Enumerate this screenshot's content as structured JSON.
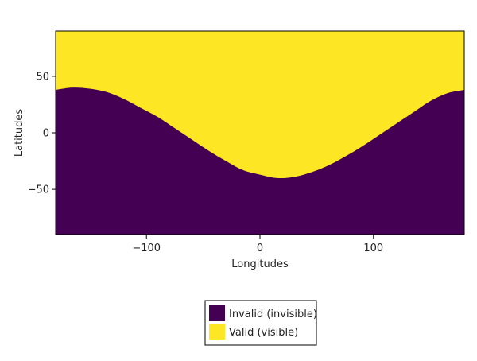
{
  "chart_data": {
    "type": "heatmap",
    "title": "",
    "xlabel": "Longitudes",
    "ylabel": "Latitudes",
    "xlim": [
      -180,
      180
    ],
    "ylim": [
      -90,
      90
    ],
    "x_ticks": [
      -100,
      0,
      100
    ],
    "y_ticks": [
      50,
      0,
      -50
    ],
    "x_tick_labels": [
      "−100",
      "0",
      "100"
    ],
    "y_tick_labels": [
      "50",
      "0",
      "−50"
    ],
    "grid": false,
    "legend_position": "bottom",
    "boundary": {
      "lon": [
        -180,
        -165,
        -150,
        -135,
        -120,
        -105,
        -90,
        -75,
        -60,
        -45,
        -30,
        -15,
        0,
        15,
        30,
        45,
        60,
        75,
        90,
        105,
        120,
        135,
        150,
        165,
        180
      ],
      "lat": [
        38,
        40,
        39,
        36,
        30,
        22,
        14,
        4,
        -6,
        -16,
        -25,
        -33,
        -37,
        -40,
        -39,
        -35,
        -29,
        -21,
        -12,
        -2,
        8,
        18,
        28,
        35,
        38
      ]
    },
    "series": [
      {
        "name": "Invalid (invisible)",
        "color": "#440154"
      },
      {
        "name": "Valid (visible)",
        "color": "#fde725"
      }
    ]
  }
}
